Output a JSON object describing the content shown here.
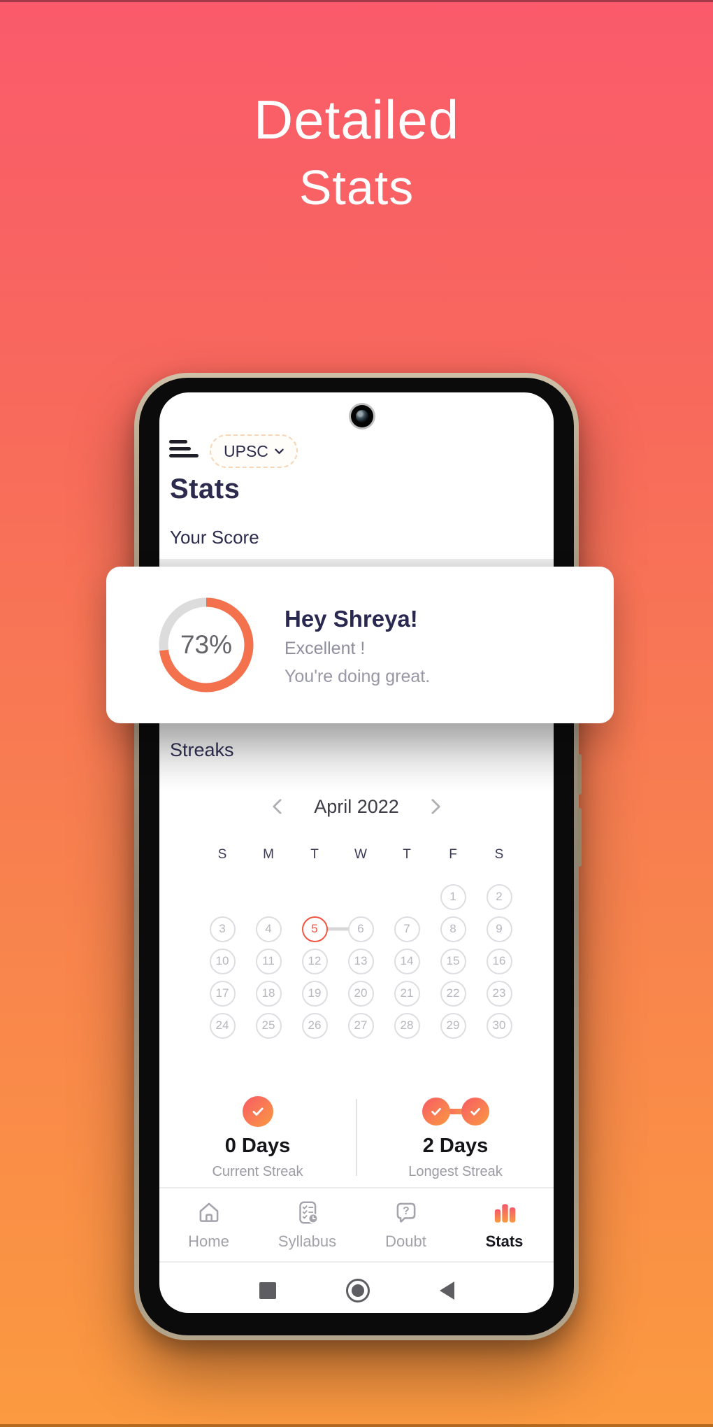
{
  "promo": {
    "title_line1": "Detailed",
    "title_line2": "Stats"
  },
  "colors": {
    "background_top": "#FA5A6B",
    "background_bottom": "#FB9A40",
    "accent_orange": "#F4714D",
    "progress_track": "#DCDCDC",
    "highlight_red": "#F25441",
    "badge_gradient_start": "#F75B65",
    "badge_gradient_end": "#F99A41",
    "title_navy": "#2C2B4E"
  },
  "phone": {
    "header": {
      "course_selector_label": "UPSC"
    },
    "page_title": "Stats",
    "score_section": {
      "heading": "Your Score",
      "percent": 73,
      "percent_label": "73%",
      "greeting": "Hey Shreya!",
      "message_line1": "Excellent !",
      "message_line2": "You're doing great."
    },
    "streaks_section": {
      "heading": "Streaks",
      "calendar": {
        "month_label": "April 2022",
        "weekday_headers": [
          "S",
          "M",
          "T",
          "W",
          "T",
          "F",
          "S"
        ],
        "weeks": [
          [
            "",
            "",
            "",
            "",
            "",
            "1",
            "2"
          ],
          [
            "3",
            "4",
            "5",
            "6",
            "7",
            "8",
            "9"
          ],
          [
            "10",
            "11",
            "12",
            "13",
            "14",
            "15",
            "16"
          ],
          [
            "17",
            "18",
            "19",
            "20",
            "21",
            "22",
            "23"
          ],
          [
            "24",
            "25",
            "26",
            "27",
            "28",
            "29",
            "30"
          ]
        ],
        "highlighted_day": "5",
        "connector_from": "5",
        "connector_to": "6"
      },
      "current_streak": {
        "value": "0 Days",
        "label": "Current Streak"
      },
      "longest_streak": {
        "value": "2 Days",
        "label": "Longest Streak"
      }
    },
    "bottom_nav": {
      "doubt_glyph": "?",
      "items": [
        {
          "label": "Home",
          "icon": "home-icon",
          "active": false
        },
        {
          "label": "Syllabus",
          "icon": "syllabus-icon",
          "active": false
        },
        {
          "label": "Doubt",
          "icon": "doubt-icon",
          "active": false
        },
        {
          "label": "Stats",
          "icon": "stats-icon",
          "active": true
        }
      ]
    }
  }
}
